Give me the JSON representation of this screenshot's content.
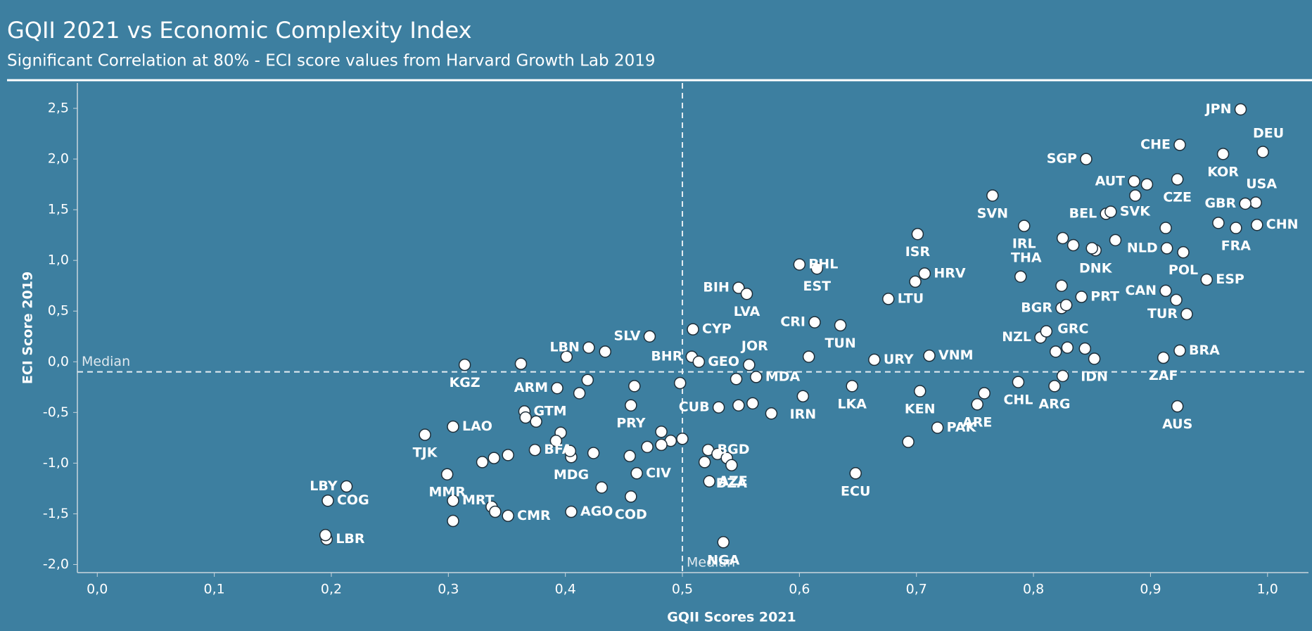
{
  "chart_data": {
    "type": "scatter",
    "title": "GQII 2021 vs Economic Complexity Index",
    "subtitle": "Significant Correlation at 80% - ECI score values from Harvard Growth Lab 2019",
    "x_label": "GQII Scores 2021",
    "y_label": "ECI Score 2019",
    "background": "#3d7fa0",
    "point_color": "#ffffff",
    "point_stroke": "#1f2f3a",
    "xlim": [
      -0.017,
      1.035
    ],
    "ylim": [
      -2.08,
      2.75
    ],
    "xticks": [
      {
        "value": 0.0,
        "label": "0,0"
      },
      {
        "value": 0.1,
        "label": "0,1"
      },
      {
        "value": 0.2,
        "label": "0,2"
      },
      {
        "value": 0.3,
        "label": "0,3"
      },
      {
        "value": 0.4,
        "label": "0,4"
      },
      {
        "value": 0.5,
        "label": "0,5"
      },
      {
        "value": 0.6,
        "label": "0,6"
      },
      {
        "value": 0.7,
        "label": "0,7"
      },
      {
        "value": 0.8,
        "label": "0,8"
      },
      {
        "value": 0.9,
        "label": "0,9"
      },
      {
        "value": 1.0,
        "label": "1,0"
      }
    ],
    "yticks": [
      {
        "value": -2.0,
        "label": "-2,0"
      },
      {
        "value": -1.5,
        "label": "-1,5"
      },
      {
        "value": -1.0,
        "label": "-1,0"
      },
      {
        "value": -0.5,
        "label": "-0,5"
      },
      {
        "value": 0.0,
        "label": "0,0"
      },
      {
        "value": 0.5,
        "label": "0,5"
      },
      {
        "value": 1.0,
        "label": "1,0"
      },
      {
        "value": 1.5,
        "label": "1,5"
      },
      {
        "value": 2.0,
        "label": "2,0"
      },
      {
        "value": 2.5,
        "label": "2,5"
      }
    ],
    "reference_lines": [
      {
        "axis": "x",
        "value": 0.5,
        "label": "Median"
      },
      {
        "axis": "y",
        "value": -0.1,
        "label": "Median"
      }
    ],
    "x": [
      0.977,
      0.996,
      0.925,
      0.962,
      0.845,
      0.886,
      0.897,
      0.923,
      0.99,
      0.981,
      0.765,
      0.887,
      0.862,
      0.866,
      0.973,
      0.958,
      0.991,
      0.792,
      0.701,
      0.913,
      0.825,
      0.834,
      0.853,
      0.85,
      0.87,
      0.914,
      0.928,
      0.789,
      0.6,
      0.615,
      0.707,
      0.699,
      0.548,
      0.555,
      0.948,
      0.824,
      0.841,
      0.913,
      0.922,
      0.676,
      0.824,
      0.828,
      0.931,
      0.613,
      0.635,
      0.509,
      0.472,
      0.806,
      0.811,
      0.819,
      0.829,
      0.844,
      0.852,
      0.925,
      0.911,
      0.42,
      0.434,
      0.401,
      0.508,
      0.514,
      0.557,
      0.608,
      0.664,
      0.711,
      0.314,
      0.362,
      0.393,
      0.412,
      0.419,
      0.459,
      0.498,
      0.563,
      0.546,
      0.603,
      0.645,
      0.703,
      0.787,
      0.818,
      0.825,
      0.758,
      0.752,
      0.923,
      0.365,
      0.366,
      0.375,
      0.396,
      0.392,
      0.456,
      0.531,
      0.548,
      0.56,
      0.576,
      0.482,
      0.5,
      0.522,
      0.49,
      0.47,
      0.482,
      0.28,
      0.304,
      0.329,
      0.339,
      0.351,
      0.299,
      0.405,
      0.404,
      0.424,
      0.374,
      0.455,
      0.461,
      0.519,
      0.53,
      0.538,
      0.542,
      0.523,
      0.431,
      0.456,
      0.405,
      0.351,
      0.337,
      0.34,
      0.304,
      0.304,
      0.213,
      0.197,
      0.196,
      0.195,
      0.535,
      0.648,
      0.718,
      0.693
    ],
    "values": [
      2.49,
      2.07,
      2.14,
      2.05,
      2.0,
      1.78,
      1.75,
      1.8,
      1.57,
      1.56,
      1.64,
      1.64,
      1.46,
      1.48,
      1.32,
      1.37,
      1.35,
      1.34,
      1.26,
      1.32,
      1.22,
      1.15,
      1.1,
      1.12,
      1.2,
      1.12,
      1.08,
      0.84,
      0.96,
      0.92,
      0.87,
      0.79,
      0.73,
      0.67,
      0.81,
      0.75,
      0.64,
      0.7,
      0.61,
      0.62,
      0.53,
      0.56,
      0.47,
      0.39,
      0.36,
      0.32,
      0.25,
      0.24,
      0.3,
      0.1,
      0.14,
      0.13,
      0.03,
      0.11,
      0.04,
      0.14,
      0.1,
      0.05,
      0.05,
      0.0,
      -0.03,
      0.05,
      0.02,
      0.06,
      -0.03,
      -0.02,
      -0.26,
      -0.31,
      -0.18,
      -0.24,
      -0.21,
      -0.15,
      -0.17,
      -0.34,
      -0.24,
      -0.29,
      -0.2,
      -0.24,
      -0.14,
      -0.31,
      -0.42,
      -0.44,
      -0.49,
      -0.55,
      -0.59,
      -0.7,
      -0.78,
      -0.43,
      -0.45,
      -0.43,
      -0.41,
      -0.51,
      -0.69,
      -0.76,
      -0.87,
      -0.78,
      -0.84,
      -0.82,
      -0.72,
      -0.64,
      -0.99,
      -0.95,
      -0.92,
      -1.11,
      -0.94,
      -0.88,
      -0.9,
      -0.87,
      -0.93,
      -1.1,
      -0.99,
      -0.91,
      -0.95,
      -1.02,
      -1.18,
      -1.24,
      -1.33,
      -1.48,
      -1.52,
      -1.43,
      -1.48,
      -1.37,
      -1.57,
      -1.23,
      -1.37,
      -1.75,
      -1.71,
      -1.78,
      -1.1,
      -0.65,
      -0.79
    ],
    "labels": [
      "JPN",
      "DEU",
      "CHE",
      "KOR",
      "SGP",
      "AUT",
      null,
      "CZE",
      "USA",
      "GBR",
      "SVN",
      null,
      "BEL",
      "SVK",
      "FRA",
      null,
      "CHN",
      "IRL",
      "ISR",
      null,
      null,
      null,
      "DNK",
      null,
      null,
      "NLD",
      "POL",
      "THA",
      "PHL",
      "EST",
      "HRV",
      null,
      "BIH",
      "LVA",
      "ESP",
      null,
      "PRT",
      "CAN",
      null,
      "LTU",
      "BGR",
      null,
      "TUR",
      "CRI",
      "TUN",
      "CYP",
      "SLV",
      "NZL",
      null,
      null,
      "GRC",
      null,
      "IDN",
      "BRA",
      "ZAF",
      "LBN",
      null,
      null,
      "BHR",
      "GEO",
      "JOR",
      null,
      "URY",
      "VNM",
      "KGZ",
      null,
      "ARM",
      null,
      null,
      null,
      null,
      "MDA",
      null,
      "IRN",
      "LKA",
      "KEN",
      "CHL",
      "ARG",
      null,
      null,
      "ARE",
      "AUS",
      "GTM",
      null,
      null,
      null,
      null,
      "PRY",
      "CUB",
      null,
      null,
      null,
      null,
      null,
      "BGD",
      null,
      null,
      null,
      "TJK",
      "LAO",
      null,
      null,
      null,
      "MMR",
      "MDG",
      null,
      null,
      "BFA",
      null,
      "CIV",
      null,
      null,
      null,
      "DZA",
      "AZE",
      null,
      "COD",
      "AGO",
      "CMR",
      null,
      null,
      "MRT",
      null,
      "LBY",
      "COG",
      "LBR",
      null,
      "NGA",
      "ECU",
      "PAK",
      null
    ]
  }
}
